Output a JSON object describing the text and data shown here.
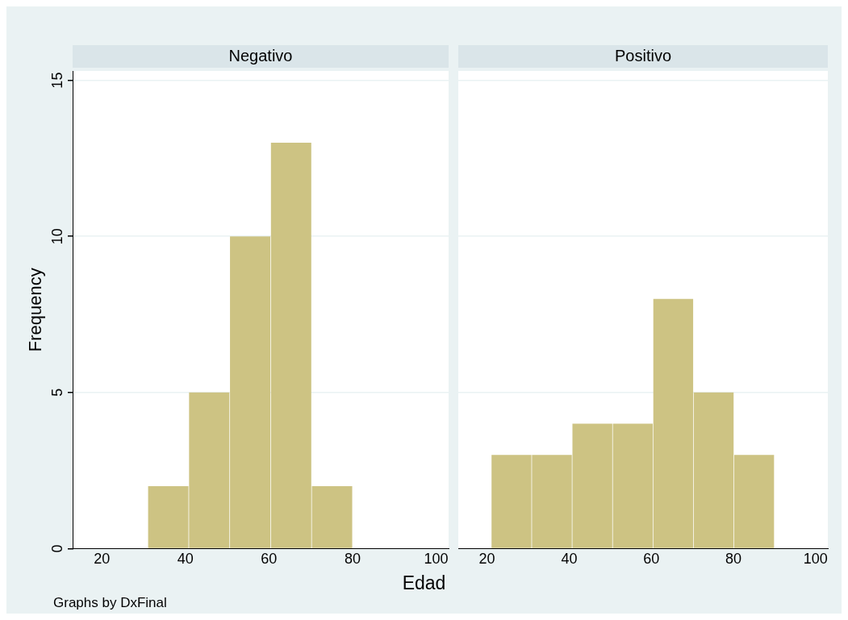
{
  "chart_data": [
    {
      "type": "histogram",
      "title": "Negativo",
      "ylabel": "Frequency",
      "xlabel": "Edad",
      "annotations": [
        "Graphs by DxFinal"
      ],
      "bins": [
        31,
        40.8,
        50.6,
        60.4,
        70.2,
        80
      ],
      "values": [
        2,
        5,
        10,
        13,
        2
      ],
      "color": "#cdc383",
      "xlim": [
        13,
        103
      ],
      "xticks": [
        20,
        40,
        60,
        80,
        100
      ],
      "ylim": [
        0,
        15.3
      ],
      "yticks": [
        0,
        5,
        10,
        15
      ],
      "grid": "y"
    },
    {
      "type": "histogram",
      "title": "Positivo",
      "bins": [
        21,
        30.9,
        40.7,
        50.6,
        60.4,
        70.3,
        80.1,
        90
      ],
      "values": [
        3,
        3,
        4,
        4,
        8,
        5,
        3
      ],
      "color": "#cdc383",
      "xlim": [
        13,
        103
      ],
      "xticks": [
        20,
        40,
        60,
        80,
        100
      ],
      "ylim": [
        0,
        15.3
      ],
      "yticks": [
        0,
        5,
        10,
        15
      ],
      "grid": "y",
      "tick_labels": "x"
    }
  ]
}
